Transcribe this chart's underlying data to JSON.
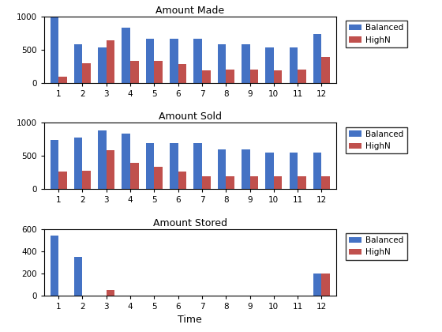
{
  "categories": [
    1,
    2,
    3,
    4,
    5,
    6,
    7,
    8,
    9,
    10,
    11,
    12
  ],
  "made_balanced": [
    1050,
    580,
    530,
    830,
    670,
    670,
    670,
    580,
    580,
    540,
    540,
    740
  ],
  "made_highn": [
    100,
    300,
    640,
    330,
    330,
    280,
    190,
    200,
    200,
    190,
    200,
    390
  ],
  "sold_balanced": [
    740,
    780,
    880,
    840,
    690,
    690,
    690,
    600,
    600,
    550,
    550,
    550
  ],
  "sold_highn": [
    270,
    280,
    590,
    400,
    340,
    270,
    190,
    200,
    200,
    195,
    195,
    200
  ],
  "stored_balanced": [
    545,
    350,
    0,
    0,
    0,
    0,
    0,
    0,
    0,
    0,
    0,
    195
  ],
  "stored_highn": [
    0,
    0,
    45,
    0,
    0,
    0,
    0,
    0,
    0,
    0,
    0,
    200
  ],
  "color_balanced": "#4472c4",
  "color_highn": "#c0504d",
  "title1": "Amount Made",
  "title2": "Amount Sold",
  "title3": "Amount Stored",
  "xlabel": "Time",
  "ylim1": [
    0,
    1000
  ],
  "ylim2": [
    0,
    1000
  ],
  "ylim3": [
    0,
    600
  ],
  "yticks1": [
    0,
    500,
    1000
  ],
  "yticks2": [
    0,
    500,
    1000
  ],
  "yticks3": [
    0,
    200,
    400,
    600
  ],
  "legend_labels": [
    "Balanced",
    "HighN"
  ]
}
